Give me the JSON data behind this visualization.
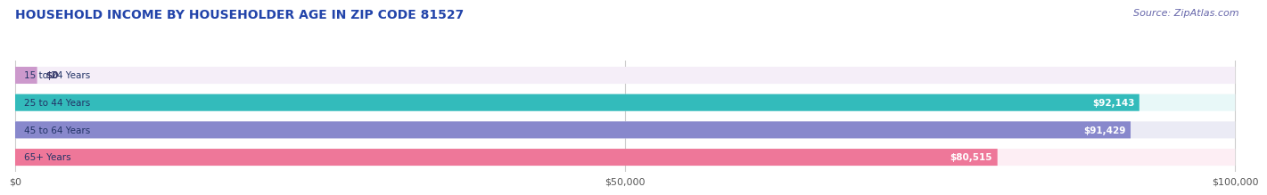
{
  "title": "HOUSEHOLD INCOME BY HOUSEHOLDER AGE IN ZIP CODE 81527",
  "source": "Source: ZipAtlas.com",
  "categories": [
    "15 to 24 Years",
    "25 to 44 Years",
    "45 to 64 Years",
    "65+ Years"
  ],
  "values": [
    0,
    92143,
    91429,
    80515
  ],
  "value_labels": [
    "$0",
    "$92,143",
    "$91,429",
    "$80,515"
  ],
  "bar_colors": [
    "#cc99cc",
    "#33bbbb",
    "#8888cc",
    "#ee7799"
  ],
  "bar_bg_colors": [
    "#f5eef8",
    "#e8f8f8",
    "#ebebf5",
    "#fdeef4"
  ],
  "xlim": [
    0,
    100000
  ],
  "xticks": [
    0,
    50000,
    100000
  ],
  "xtick_labels": [
    "$0",
    "$50,000",
    "$100,000"
  ],
  "title_color": "#2244aa",
  "title_fontsize": 10,
  "source_fontsize": 8,
  "bar_height": 0.62,
  "background_color": "#ffffff",
  "grid_color": "#cccccc",
  "label_color_dark": "#333355",
  "label_color_white": "#ffffff"
}
